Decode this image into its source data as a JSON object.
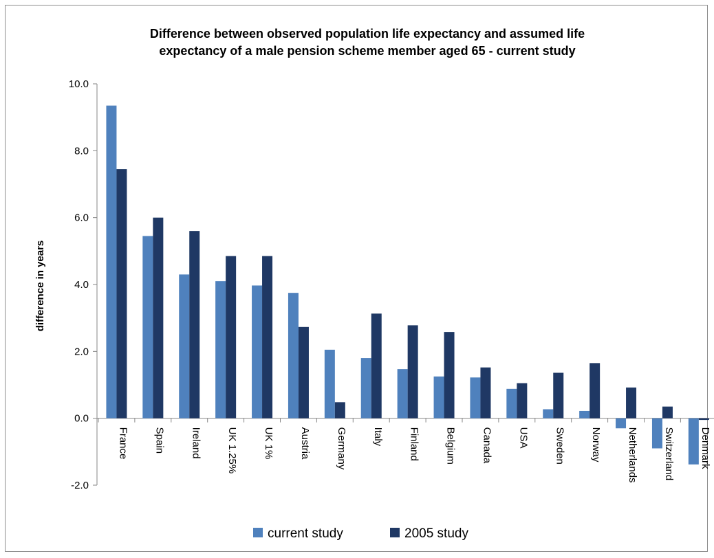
{
  "chart_data": {
    "type": "bar",
    "title_lines": [
      "Difference between observed population life expectancy and assumed life",
      "expectancy of a male pension scheme member aged 65 - current study"
    ],
    "xlabel": "",
    "ylabel": "difference in years",
    "ylim": [
      -2.0,
      10.0
    ],
    "yticks": [
      "10.0",
      "8.0",
      "6.0",
      "4.0",
      "2.0",
      "0.0",
      "-2.0"
    ],
    "grid": false,
    "legend_position": "bottom",
    "categories": [
      "France",
      "Spain",
      "Ireland",
      "UK 1.25%",
      "UK 1%",
      "Austria",
      "Germany",
      "Italy",
      "Finland",
      "Belgium",
      "Canada",
      "USA",
      "Sweden",
      "Norway",
      "Netherlands",
      "Switzerland",
      "Denmark"
    ],
    "series": [
      {
        "name": "current study",
        "color": "#4f81bd",
        "values": [
          9.35,
          5.45,
          4.3,
          4.1,
          3.97,
          3.75,
          2.05,
          1.8,
          1.47,
          1.25,
          1.22,
          0.88,
          0.27,
          0.22,
          -0.3,
          -0.9,
          -1.38
        ]
      },
      {
        "name": "2005 study",
        "color": "#1f3864",
        "values": [
          7.45,
          6.0,
          5.6,
          4.85,
          4.85,
          2.73,
          0.48,
          3.13,
          2.78,
          2.58,
          1.52,
          1.05,
          1.36,
          1.65,
          0.92,
          0.35,
          -0.05
        ]
      }
    ]
  }
}
